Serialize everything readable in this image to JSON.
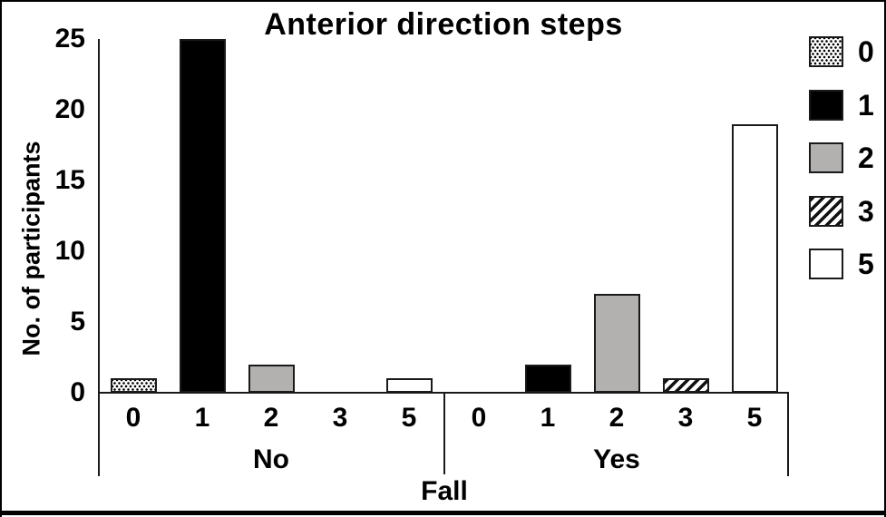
{
  "chart_data": {
    "type": "bar",
    "title": "Anterior direction steps",
    "ylabel": "No. of participants",
    "xlabel": "Fall",
    "ylim": [
      0,
      25
    ],
    "yticks": [
      0,
      5,
      10,
      15,
      20,
      25
    ],
    "grid": false,
    "legend_position": "right",
    "categories": [
      "0",
      "1",
      "2",
      "3",
      "5"
    ],
    "groups": [
      {
        "label": "No",
        "values": [
          1,
          25,
          2,
          0,
          1
        ]
      },
      {
        "label": "Yes",
        "values": [
          0,
          2,
          7,
          1,
          19
        ]
      }
    ],
    "legend": [
      {
        "label": "0",
        "fill": "dots"
      },
      {
        "label": "1",
        "fill": "black"
      },
      {
        "label": "2",
        "fill": "gray"
      },
      {
        "label": "3",
        "fill": "hatch"
      },
      {
        "label": "5",
        "fill": "white"
      }
    ],
    "colors": {
      "black": "#000000",
      "gray": "#b3b0b0",
      "white": "#ffffff",
      "bar_border": "#1a1a1a"
    }
  }
}
